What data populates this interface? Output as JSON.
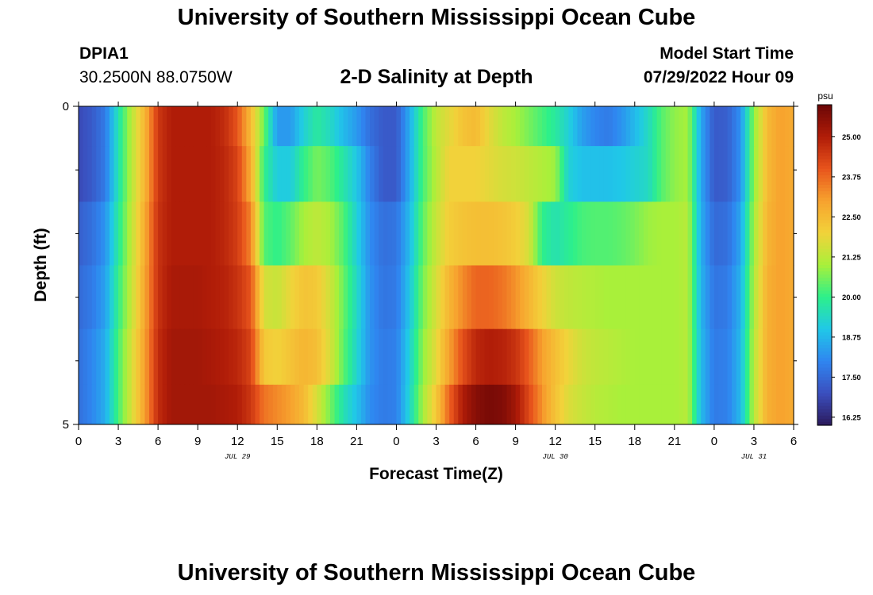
{
  "header": {
    "title": "University of Southern Mississippi Ocean Cube",
    "station_id": "DPIA1",
    "coords": "30.2500N  88.0750W",
    "plot_title": "2-D Salinity at Depth",
    "model_start_label": "Model Start Time",
    "model_start_value": "07/29/2022 Hour 09"
  },
  "footer": {
    "title": "University of Southern Mississippi Ocean Cube"
  },
  "colors": {
    "colormap": [
      "#2b1a5c",
      "#3b4fbf",
      "#2f86f0",
      "#20c8e8",
      "#2df08a",
      "#a9f03a",
      "#f2d23a",
      "#f7a22e",
      "#e8541c",
      "#b01c08",
      "#6b0606"
    ]
  },
  "chart_data": {
    "type": "heatmap",
    "xlabel": "Forecast Time(Z)",
    "ylabel": "Depth (ft)",
    "x_tick_labels": [
      "0",
      "3",
      "6",
      "9",
      "12",
      "15",
      "18",
      "21",
      "0",
      "3",
      "6",
      "9",
      "12",
      "15",
      "18",
      "21",
      "0",
      "3",
      "6"
    ],
    "date_labels": [
      {
        "label": "JUL 29",
        "hour": 12
      },
      {
        "label": "JUL 30",
        "hour": 36
      },
      {
        "label": "JUL 31",
        "hour": 51
      }
    ],
    "x_range_hours": [
      0,
      54
    ],
    "y_range_ft": [
      0,
      5
    ],
    "y_tick_labels": [
      "0",
      "5"
    ],
    "colorbar": {
      "unit": "psu",
      "ticks": [
        "25.00",
        "23.75",
        "22.50",
        "21.25",
        "20.00",
        "18.75",
        "17.50",
        "16.25"
      ],
      "range": [
        16.0,
        26.0
      ]
    },
    "depth_levels_ft": [
      0.25,
      1.0,
      2.0,
      3.0,
      4.0,
      4.75
    ],
    "time_hours_keypoints": [
      0,
      1,
      2,
      3,
      4,
      5,
      6,
      7,
      8,
      9,
      10,
      11,
      12,
      13,
      14,
      15,
      16,
      17,
      18,
      19,
      20,
      21,
      22,
      23,
      24,
      25,
      26,
      27,
      28,
      29,
      30,
      31,
      32,
      33,
      34,
      35,
      36,
      37,
      38,
      39,
      40,
      41,
      42,
      43,
      44,
      45,
      46,
      47,
      48,
      49,
      50,
      51,
      52,
      53,
      54
    ],
    "salinity_psu": [
      [
        16.9,
        17.2,
        17.8,
        19.6,
        21.2,
        22.6,
        24.5,
        25.0,
        25.0,
        25.0,
        25.0,
        24.7,
        24.0,
        22.5,
        20.5,
        18.3,
        18.3,
        19.2,
        19.8,
        19.4,
        18.8,
        18.3,
        17.6,
        17.2,
        17.2,
        18.6,
        20.2,
        21.3,
        21.8,
        22.3,
        22.5,
        21.8,
        21.3,
        21.0,
        20.6,
        20.2,
        19.8,
        19.2,
        18.4,
        18.0,
        17.8,
        18.2,
        18.8,
        19.4,
        20.3,
        20.8,
        21.0,
        18.5,
        17.2,
        17.3,
        18.2,
        20.8,
        22.5,
        23.0,
        22.8
      ],
      [
        16.9,
        17.2,
        17.8,
        19.6,
        21.2,
        22.6,
        24.5,
        25.0,
        25.0,
        25.0,
        25.0,
        24.8,
        24.3,
        22.8,
        20.0,
        19.1,
        19.1,
        20.0,
        20.6,
        20.3,
        19.7,
        19.0,
        17.9,
        17.2,
        17.2,
        18.6,
        20.2,
        21.2,
        22.0,
        22.0,
        22.0,
        21.8,
        21.6,
        21.5,
        21.3,
        21.1,
        20.9,
        19.2,
        18.9,
        18.9,
        18.9,
        19.0,
        19.2,
        19.4,
        20.3,
        20.8,
        21.0,
        18.5,
        17.2,
        17.3,
        18.2,
        20.8,
        22.5,
        23.0,
        22.8
      ],
      [
        17.3,
        17.6,
        18.2,
        19.8,
        21.3,
        22.8,
        24.6,
        25.0,
        25.0,
        25.0,
        25.0,
        24.8,
        24.4,
        23.4,
        20.3,
        20.0,
        20.4,
        21.0,
        21.3,
        21.0,
        20.3,
        19.2,
        18.1,
        17.6,
        17.7,
        18.8,
        20.4,
        21.4,
        22.1,
        22.3,
        22.4,
        22.4,
        22.3,
        22.1,
        21.6,
        20.0,
        19.6,
        19.9,
        20.2,
        20.3,
        20.3,
        20.4,
        20.6,
        20.9,
        21.0,
        21.0,
        21.2,
        18.6,
        17.5,
        17.6,
        18.5,
        21.0,
        22.6,
        23.0,
        22.8
      ],
      [
        17.5,
        17.8,
        18.4,
        20.0,
        21.4,
        22.9,
        24.6,
        25.1,
        25.1,
        25.1,
        25.0,
        24.9,
        24.6,
        24.0,
        21.6,
        21.4,
        21.9,
        22.3,
        22.2,
        21.5,
        20.5,
        19.4,
        18.2,
        17.7,
        17.8,
        19.0,
        20.6,
        21.6,
        22.6,
        23.3,
        23.8,
        23.8,
        23.6,
        23.2,
        22.6,
        22.0,
        21.5,
        21.3,
        21.2,
        21.1,
        21.0,
        21.0,
        21.0,
        21.0,
        21.0,
        21.0,
        21.2,
        18.7,
        17.7,
        17.8,
        18.7,
        21.1,
        22.7,
        23.0,
        22.8
      ],
      [
        17.6,
        18.0,
        18.6,
        20.2,
        21.6,
        23.0,
        24.7,
        25.2,
        25.2,
        25.2,
        25.1,
        25.0,
        24.8,
        24.3,
        22.2,
        22.0,
        22.3,
        22.6,
        22.4,
        21.6,
        20.4,
        19.3,
        18.2,
        17.8,
        17.9,
        19.2,
        20.8,
        21.8,
        23.0,
        24.1,
        24.8,
        25.0,
        24.9,
        24.6,
        23.9,
        23.0,
        22.4,
        21.9,
        21.5,
        21.3,
        21.2,
        21.1,
        21.0,
        21.0,
        21.0,
        21.0,
        21.2,
        18.8,
        17.8,
        17.9,
        18.8,
        21.2,
        22.7,
        23.0,
        22.8
      ],
      [
        17.6,
        18.0,
        18.6,
        20.2,
        21.6,
        23.0,
        24.7,
        25.2,
        25.2,
        25.2,
        25.2,
        25.1,
        25.0,
        24.5,
        23.6,
        23.3,
        23.0,
        22.5,
        21.6,
        20.6,
        19.6,
        18.9,
        18.1,
        17.8,
        17.9,
        19.3,
        21.0,
        22.2,
        23.8,
        25.0,
        25.6,
        25.8,
        25.7,
        25.2,
        24.2,
        23.2,
        22.3,
        21.7,
        21.4,
        21.2,
        21.1,
        21.0,
        21.0,
        21.0,
        21.0,
        21.0,
        21.2,
        18.8,
        17.8,
        17.9,
        18.8,
        21.2,
        22.7,
        23.0,
        22.8
      ]
    ]
  }
}
